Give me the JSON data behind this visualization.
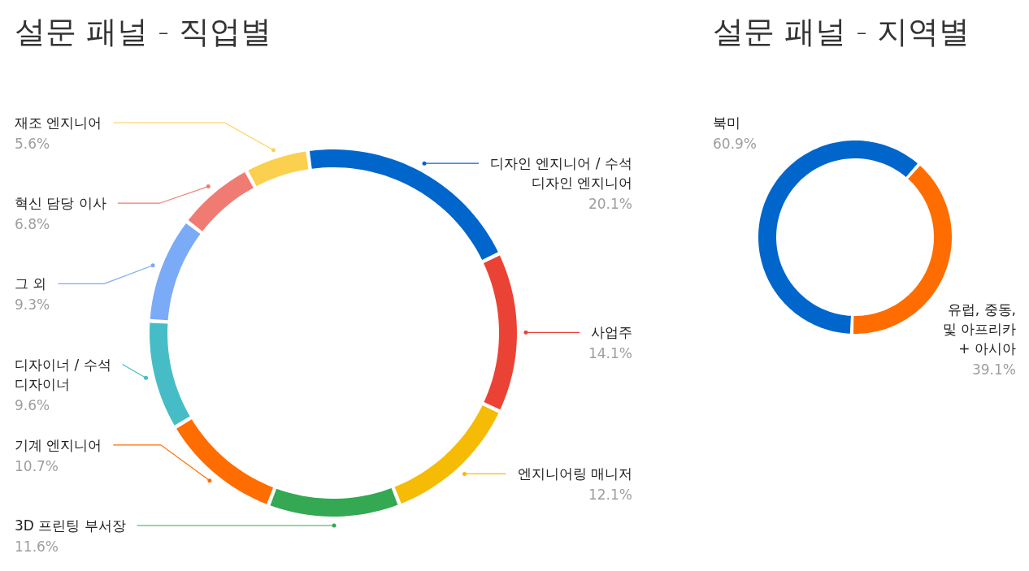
{
  "chart_data": [
    {
      "type": "donut",
      "title": "설문 패널 - 직업별",
      "categories": [
        "디자인 엔지니어 / 수석 디자인 엔지니어",
        "사업주",
        "엔지니어링 매니저",
        "3D 프린팅 부서장",
        "기계 엔지니어",
        "디자이너 / 수석 디자이너",
        "그 외",
        "혁신 담당 이사",
        "재조 엔지니어"
      ],
      "values": [
        20.1,
        14.1,
        12.1,
        11.6,
        10.7,
        9.6,
        9.3,
        6.8,
        5.6
      ],
      "value_labels": [
        "20.1%",
        "14.1%",
        "12.1%",
        "11.6%",
        "10.7%",
        "9.6%",
        "9.3%",
        "6.8%",
        "5.6%"
      ],
      "colors": [
        "#0066cc",
        "#ea4335",
        "#f6bb05",
        "#34a853",
        "#ff6d01",
        "#46bdc6",
        "#7baaf7",
        "#f07b72",
        "#fcd04f"
      ]
    },
    {
      "type": "donut",
      "title": "설문 패널 - 지역별",
      "categories": [
        "북미",
        "유럽, 중동, 및 아프리카 + 아시아"
      ],
      "values": [
        60.9,
        39.1
      ],
      "value_labels": [
        "60.9%",
        "39.1%"
      ],
      "colors": [
        "#0066cc",
        "#ff6d01"
      ]
    }
  ]
}
